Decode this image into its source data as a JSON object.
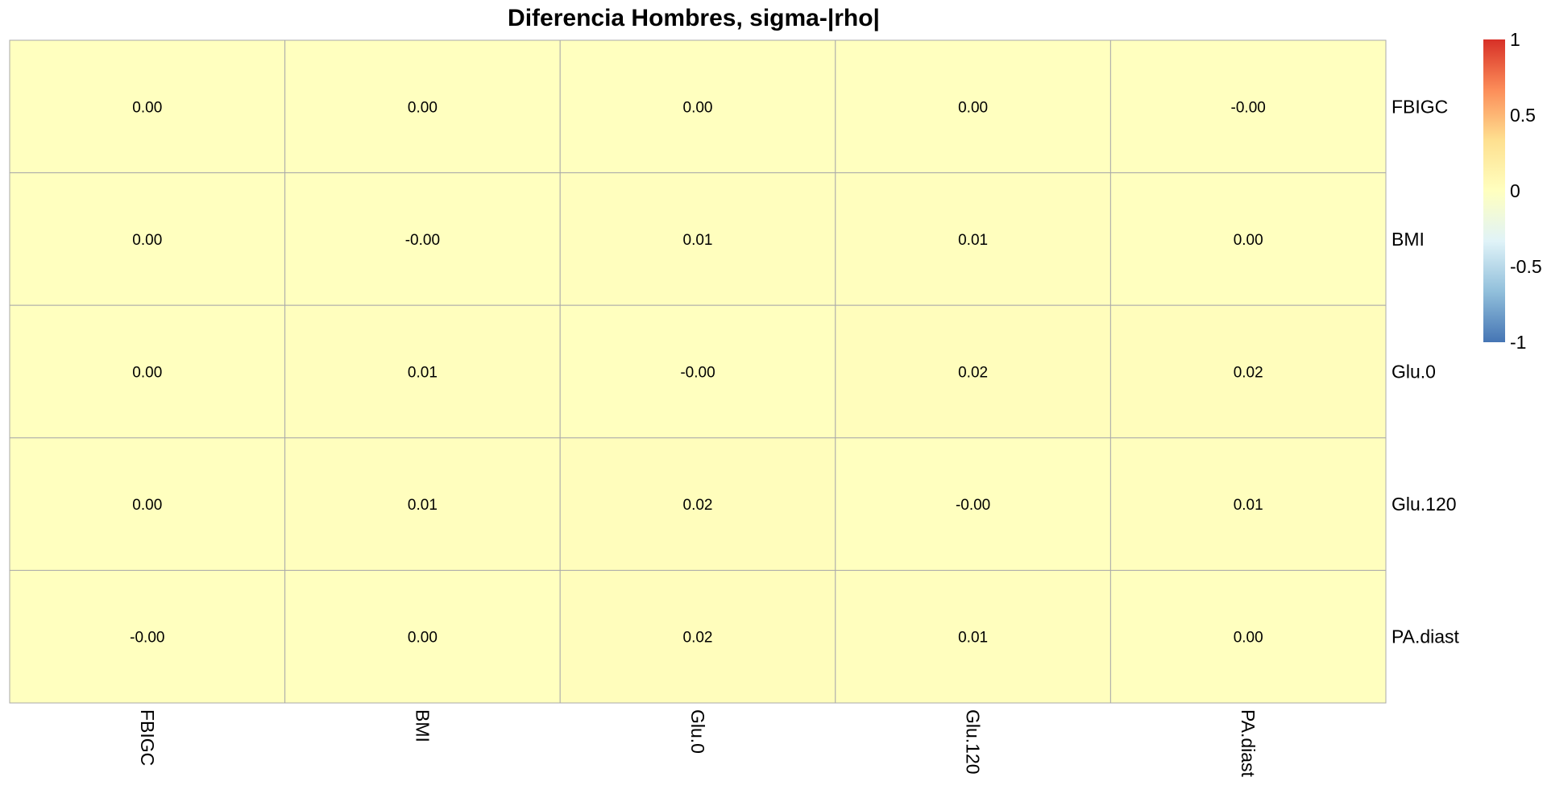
{
  "chart_data": {
    "type": "heatmap",
    "title": "Diferencia Hombres, sigma-|rho|",
    "rows": [
      "FBIGC",
      "BMI",
      "Glu.0",
      "Glu.120",
      "PA.diast"
    ],
    "columns": [
      "FBIGC",
      "BMI",
      "Glu.0",
      "Glu.120",
      "PA.diast"
    ],
    "values": [
      [
        0.0,
        0.0,
        0.0,
        0.0,
        -0.0
      ],
      [
        0.0,
        -0.0,
        0.01,
        0.01,
        0.0
      ],
      [
        0.0,
        0.01,
        -0.0,
        0.02,
        0.02
      ],
      [
        0.0,
        0.01,
        0.02,
        -0.0,
        0.01
      ],
      [
        -0.0,
        0.0,
        0.02,
        0.01,
        0.0
      ]
    ],
    "labels": [
      [
        "0.00",
        "0.00",
        "0.00",
        "0.00",
        "-0.00"
      ],
      [
        "0.00",
        "-0.00",
        "0.01",
        "0.01",
        "0.00"
      ],
      [
        "0.00",
        "0.01",
        "-0.00",
        "0.02",
        "0.02"
      ],
      [
        "0.00",
        "0.01",
        "0.02",
        "-0.00",
        "0.01"
      ],
      [
        "-0.00",
        "0.00",
        "0.02",
        "0.01",
        "0.00"
      ]
    ],
    "color_scale": {
      "min": -1,
      "max": 1,
      "stops": [
        "#4575b4",
        "#91bfdb",
        "#e0f3f8",
        "#ffffbf",
        "#fee090",
        "#fc8d59",
        "#d73027"
      ],
      "ticks": [
        {
          "value": 1,
          "label": "1"
        },
        {
          "value": 0.5,
          "label": "0.5"
        },
        {
          "value": 0,
          "label": "0"
        },
        {
          "value": -0.5,
          "label": "-0.5"
        },
        {
          "value": -1,
          "label": "-1"
        }
      ]
    },
    "row_labels_side": "right",
    "column_labels_side": "bottom",
    "column_label_rotation": "vertical",
    "legend_placement": "top-right",
    "grid_color": "#aaaaaa"
  }
}
